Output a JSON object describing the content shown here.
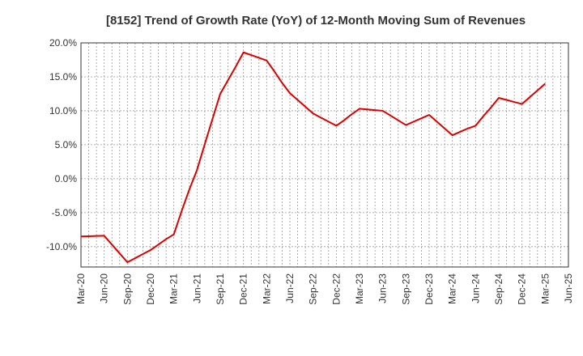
{
  "chart_data": {
    "type": "line",
    "title": "[8152]  Trend of Growth Rate (YoY) of 12-Month Moving Sum of Revenues",
    "xlabel": "",
    "ylabel": "",
    "ylim": [
      -13,
      20
    ],
    "y_ticks": [
      20,
      15,
      10,
      5,
      0,
      -5,
      -10
    ],
    "y_tick_labels": [
      "20.0%",
      "15.0%",
      "10.0%",
      "5.0%",
      "0.0%",
      "-5.0%",
      "-10.0%"
    ],
    "x_tick_labels": [
      "Mar-20",
      "Jun-20",
      "Sep-20",
      "Dec-20",
      "Mar-21",
      "Jun-21",
      "Sep-21",
      "Dec-21",
      "Mar-22",
      "Jun-22",
      "Sep-22",
      "Dec-22",
      "Mar-23",
      "Jun-23",
      "Sep-23",
      "Dec-23",
      "Mar-24",
      "Jun-24",
      "Sep-24",
      "Dec-24",
      "Mar-25",
      "Jun-25"
    ],
    "grid": true,
    "series": [
      {
        "color": "#dd0000",
        "x": [
          "Mar-20",
          "Apr-20",
          "May-20",
          "Jun-20",
          "Jul-20",
          "Aug-20",
          "Sep-20",
          "Oct-20",
          "Nov-20",
          "Dec-20",
          "Jan-21",
          "Feb-21",
          "Mar-21",
          "Apr-21",
          "May-21",
          "Jun-21",
          "Jul-21",
          "Aug-21",
          "Sep-21",
          "Oct-21",
          "Nov-21",
          "Dec-21",
          "Jan-22",
          "Feb-22",
          "Mar-22",
          "Apr-22",
          "May-22",
          "Jun-22",
          "Jul-22",
          "Aug-22",
          "Sep-22",
          "Oct-22",
          "Nov-22",
          "Dec-22",
          "Jan-23",
          "Feb-23",
          "Mar-23",
          "Apr-23",
          "May-23",
          "Jun-23",
          "Jul-23",
          "Aug-23",
          "Sep-23",
          "Oct-23",
          "Nov-23",
          "Dec-23",
          "Jan-24",
          "Feb-24",
          "Mar-24",
          "Apr-24",
          "May-24",
          "Jun-24",
          "Jul-24",
          "Aug-24",
          "Sep-24",
          "Oct-24",
          "Nov-24",
          "Dec-24",
          "Jan-25",
          "Feb-25",
          "Mar-25"
        ],
        "values": [
          -8.5,
          -8.47,
          -8.43,
          -8.4,
          -9.7,
          -11.0,
          -12.3,
          -11.7,
          -11.1,
          -10.5,
          -9.7,
          -8.9,
          -8.2,
          -4.8,
          -1.6,
          1.3,
          5.1,
          8.8,
          12.5,
          14.5,
          16.5,
          18.6,
          18.2,
          17.8,
          17.4,
          15.8,
          14.1,
          12.6,
          11.6,
          10.6,
          9.6,
          9.0,
          8.4,
          7.8,
          8.6,
          9.5,
          10.3,
          10.2,
          10.1,
          10.0,
          9.3,
          8.6,
          7.9,
          8.4,
          8.9,
          9.4,
          8.4,
          7.4,
          6.4,
          6.9,
          7.4,
          7.8,
          9.2,
          10.5,
          11.9,
          11.6,
          11.3,
          11.0,
          12.0,
          13.0,
          14.0
        ]
      }
    ]
  }
}
